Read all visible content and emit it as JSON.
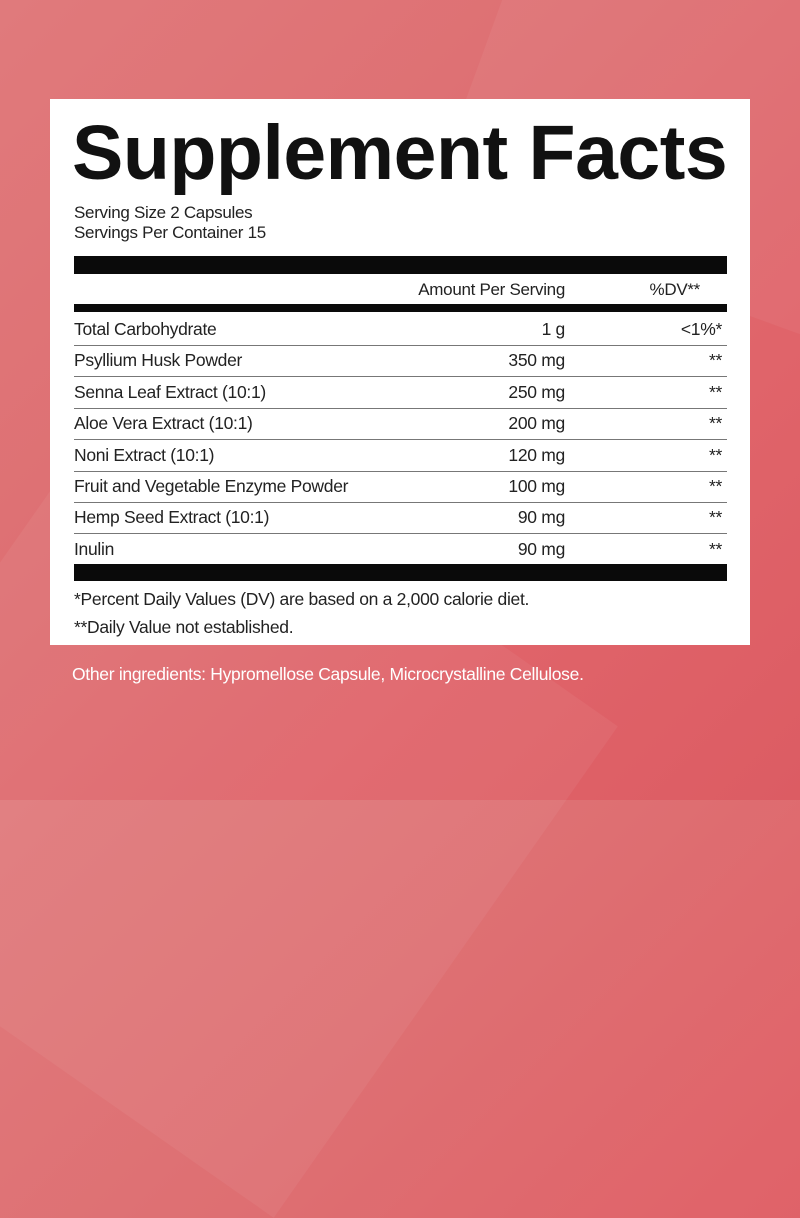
{
  "colors": {
    "background": "#de6f72",
    "panel": "#ffffff",
    "text": "#222222",
    "bars": "#0a0a0a"
  },
  "title": "Supplement Facts",
  "serving_size": "Serving Size 2 Capsules",
  "servings_per_container": "Servings Per Container 15",
  "header": {
    "amount": "Amount Per Serving",
    "dv": "%DV**"
  },
  "rows": [
    {
      "name": "Total Carbohydrate",
      "amount": "1 g",
      "dv": "<1%*"
    },
    {
      "name": "Psyllium Husk Powder",
      "amount": "350 mg",
      "dv": "**"
    },
    {
      "name": "Senna Leaf Extract (10:1)",
      "amount": "250 mg",
      "dv": "**"
    },
    {
      "name": "Aloe Vera Extract (10:1)",
      "amount": "200 mg",
      "dv": "**"
    },
    {
      "name": "Noni Extract (10:1)",
      "amount": "120 mg",
      "dv": "**"
    },
    {
      "name": "Fruit and Vegetable Enzyme Powder",
      "amount": "100 mg",
      "dv": "**"
    },
    {
      "name": "Hemp Seed Extract (10:1)",
      "amount": "90 mg",
      "dv": "**"
    },
    {
      "name": "Inulin",
      "amount": "90 mg",
      "dv": "**"
    }
  ],
  "footnotes": [
    "*Percent Daily Values (DV) are based on a 2,000 calorie diet.",
    "**Daily Value not established."
  ],
  "other_ingredients": "Other ingredients: Hypromellose Capsule, Microcrystalline Cellulose."
}
